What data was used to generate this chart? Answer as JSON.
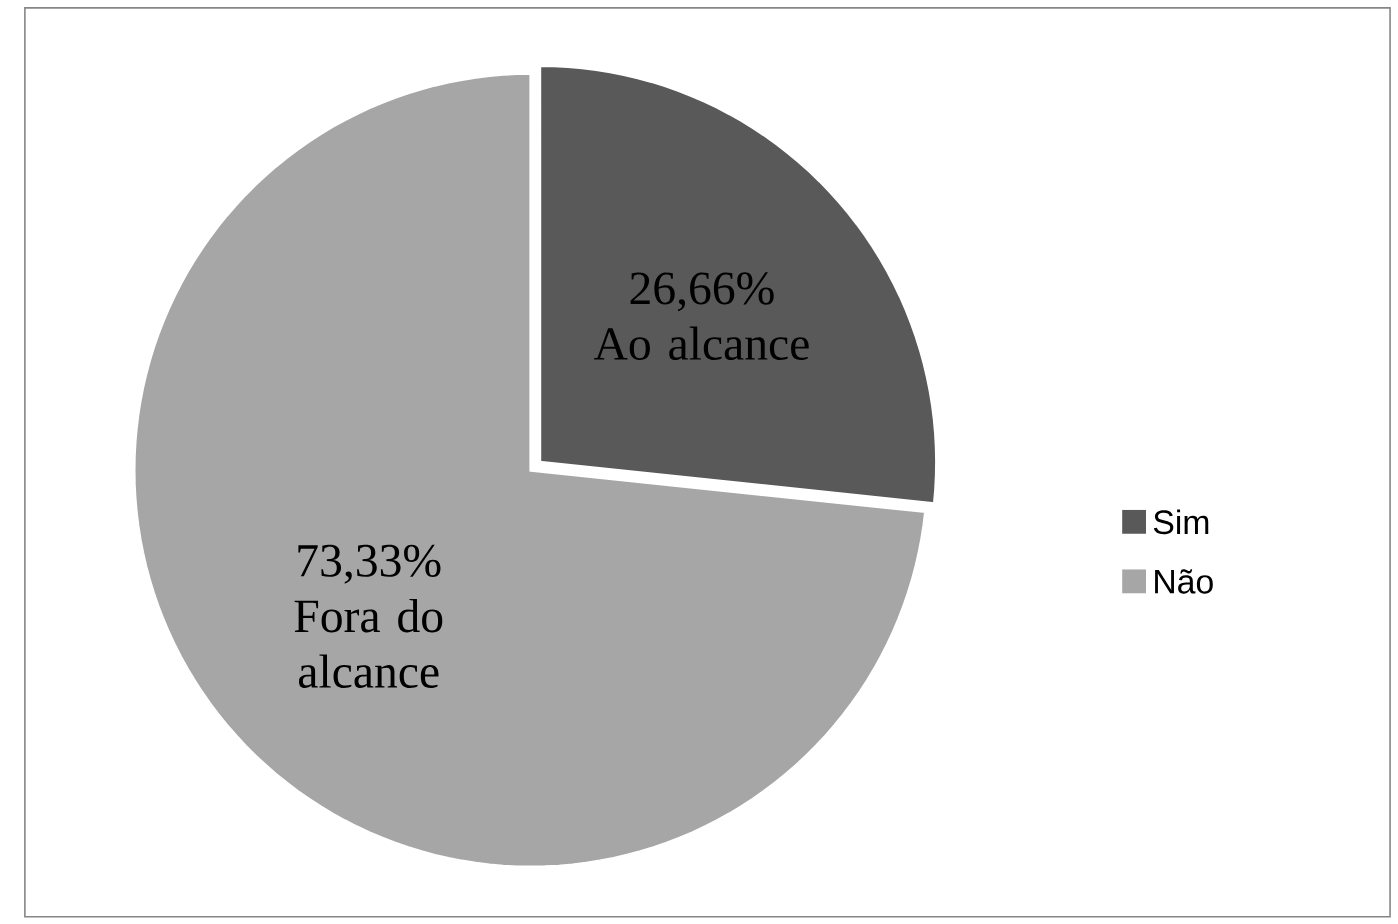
{
  "chart_data": {
    "type": "pie",
    "categories": [
      "Sim",
      "Não"
    ],
    "values": [
      26.66,
      73.33
    ],
    "colors": [
      "#595959",
      "#a6a6a6"
    ],
    "value_labels": [
      "26,66%",
      "73,33%"
    ],
    "annotations": [
      {
        "text": "Ao alcance",
        "x": "Sim"
      },
      {
        "text": "Fora do alcance",
        "x": "Não"
      }
    ],
    "legend": "right"
  }
}
